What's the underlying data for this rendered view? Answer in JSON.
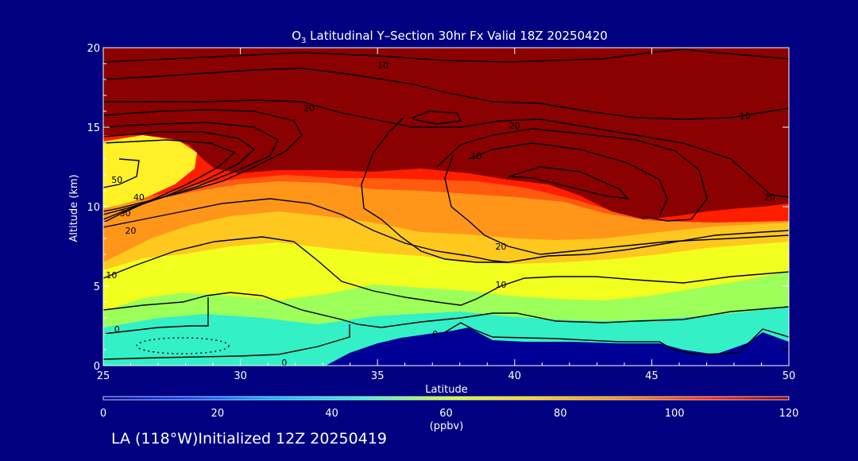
{
  "title": "O3 Latitudinal Y–Section 30hr  Fx Valid 18Z 20250420",
  "title_parts": {
    "pre": "O",
    "sub": "3",
    "post": " Latitudinal Y–Section 30hr  Fx Valid 18Z 20250420"
  },
  "footer": "LA (118°W)Initialized 12Z 20250419",
  "colorbar": {
    "unit": "(ppbv)",
    "ticks": [
      0,
      20,
      40,
      60,
      80,
      100,
      120
    ],
    "tick_labels": [
      "0",
      "20",
      "40",
      "60",
      "80",
      "100",
      "120"
    ],
    "colors": [
      "#000096",
      "#0a3cff",
      "#00b4ff",
      "#32f0c8",
      "#c8ff28",
      "#ffd200",
      "#ff8c00",
      "#ff2800",
      "#8c0000"
    ]
  },
  "chart_data": {
    "type": "heatmap",
    "title": "O3 Latitudinal Y–Section 30hr  Fx Valid 18Z 20250420",
    "xlabel": "Latitude",
    "ylabel": "Altitude (km)",
    "xlim": [
      25,
      50
    ],
    "ylim": [
      0,
      20
    ],
    "xticks": [
      25,
      30,
      35,
      40,
      45,
      50
    ],
    "yticks": [
      0,
      5,
      10,
      15,
      20
    ],
    "value_range": [
      0,
      120
    ],
    "value_unit": "ppbv",
    "terrain_top_km": [
      [
        25,
        0
      ],
      [
        33,
        0
      ],
      [
        36,
        1.5
      ],
      [
        37.5,
        1.8
      ],
      [
        40,
        1.4
      ],
      [
        45,
        1.3
      ],
      [
        47,
        0.7
      ],
      [
        50,
        1.1
      ]
    ],
    "tropopause_km": [
      [
        25,
        13.8
      ],
      [
        28.5,
        13.2
      ],
      [
        29.5,
        11.8
      ],
      [
        35,
        12
      ],
      [
        40,
        11.2
      ],
      [
        43,
        9.8
      ],
      [
        46,
        9
      ],
      [
        50,
        8.4
      ]
    ],
    "contour_labels": [
      {
        "value": "10",
        "lat": 35.2,
        "alt": 18.9
      },
      {
        "value": "20",
        "lat": 32.5,
        "alt": 16.2
      },
      {
        "value": "20",
        "lat": 40,
        "alt": 15.1
      },
      {
        "value": "10",
        "lat": 48.4,
        "alt": 15.7
      },
      {
        "value": "10",
        "lat": 38.6,
        "alt": 13.2
      },
      {
        "value": "50",
        "lat": 25.5,
        "alt": 11.7
      },
      {
        "value": "40",
        "lat": 26.3,
        "alt": 10.6
      },
      {
        "value": "30",
        "lat": 25.8,
        "alt": 9.6
      },
      {
        "value": "20",
        "lat": 26,
        "alt": 8.5
      },
      {
        "value": "20",
        "lat": 49.3,
        "alt": 10.6
      },
      {
        "value": "20",
        "lat": 39.5,
        "alt": 7.5
      },
      {
        "value": "10",
        "lat": 25.3,
        "alt": 5.7
      },
      {
        "value": "10",
        "lat": 39.5,
        "alt": 5.1
      },
      {
        "value": "0",
        "lat": 25.5,
        "alt": 2.3
      },
      {
        "value": "0",
        "lat": 31.6,
        "alt": 0.2
      },
      {
        "value": "0",
        "lat": 37.1,
        "alt": 2.0
      }
    ]
  }
}
